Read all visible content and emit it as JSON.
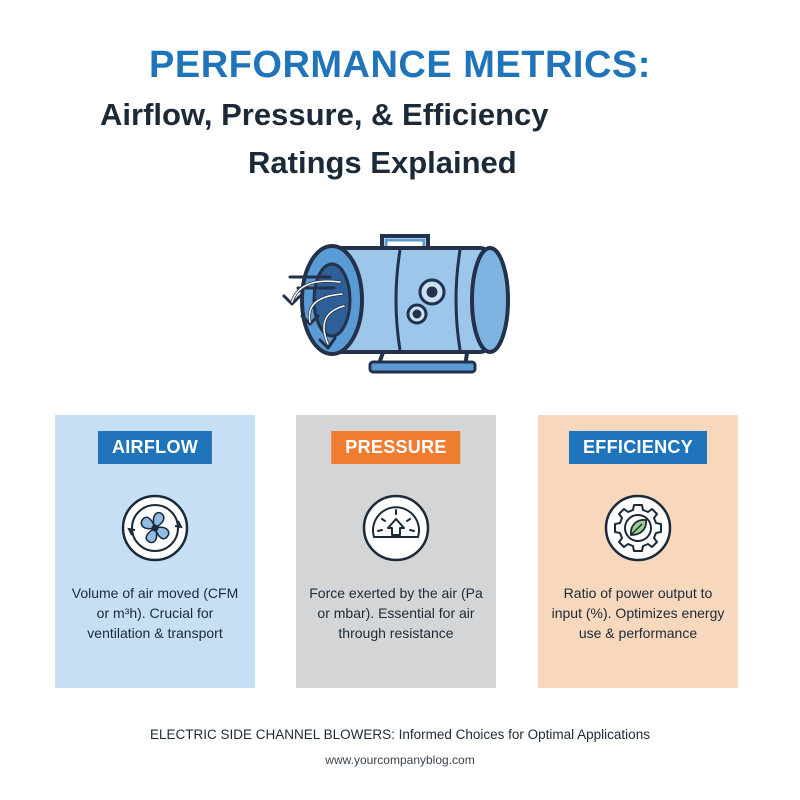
{
  "header": {
    "title_line1": "PERFORMANCE METRICS:",
    "title_line2": "Airflow, Pressure, & Efficiency",
    "title_line3": "Ratings Explained"
  },
  "hero": {
    "icon": "side-channel-blower-icon"
  },
  "cards": [
    {
      "badge": "AIRFLOW",
      "icon": "fan-icon",
      "description": "Volume of air moved (CFM or m³h). Crucial for ventilation & transport",
      "color": "#c7dff4",
      "badge_color": "#1f74ba"
    },
    {
      "badge": "PRESSURE",
      "icon": "pressure-gauge-icon",
      "description": "Force exerted by the air (Pa or mbar). Essential for air through resistance",
      "color": "#d4d5d7",
      "badge_color": "#ee7d2f"
    },
    {
      "badge": "EFFICIENCY",
      "icon": "gear-leaf-icon",
      "description": "Ratio of power output to input (%). Optimizes energy use & performance",
      "color": "#f7d8bc",
      "badge_color": "#1f74ba"
    }
  ],
  "footer": {
    "tagline": "ELECTRIC SIDE CHANNEL BLOWERS: Informed Choices for Optimal Applications",
    "url": "www.yourcompanyblog.com"
  }
}
